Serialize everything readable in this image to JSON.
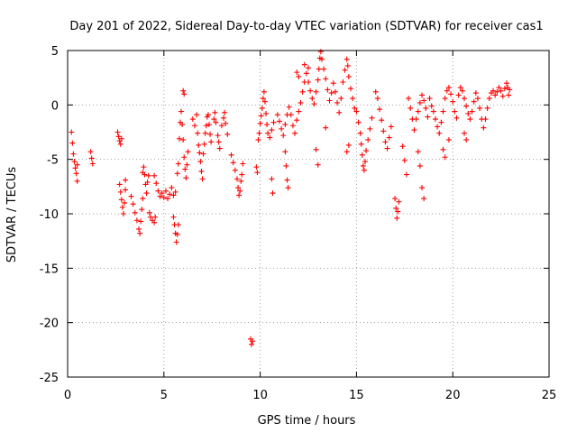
{
  "chart_data": {
    "type": "scatter",
    "title": "Day 201 of 2022, Sidereal Day-to-day VTEC variation (SDTVAR) for receiver cas1",
    "xlabel": "GPS time / hours",
    "ylabel": "SDTVAR / TECUs",
    "xlim": [
      0,
      25
    ],
    "ylim": [
      -25,
      5
    ],
    "xticks": [
      "0",
      "5",
      "10",
      "15",
      "20",
      "25"
    ],
    "yticks": [
      "5",
      "0",
      "-5",
      "-10",
      "-15",
      "-20",
      "-25"
    ],
    "grid": true,
    "marker": "+",
    "color": "#ff0000",
    "series": [
      {
        "name": "SDTVAR",
        "points": [
          [
            0.2,
            -2.5
          ],
          [
            0.25,
            -3.5
          ],
          [
            0.3,
            -4.5
          ],
          [
            0.35,
            -5.2
          ],
          [
            0.4,
            -5.8
          ],
          [
            0.45,
            -6.3
          ],
          [
            0.5,
            -7.0
          ],
          [
            0.5,
            -5.5
          ],
          [
            1.2,
            -4.3
          ],
          [
            1.25,
            -4.9
          ],
          [
            1.3,
            -5.4
          ],
          [
            2.6,
            -2.5
          ],
          [
            2.65,
            -2.9
          ],
          [
            2.7,
            -3.3
          ],
          [
            2.75,
            -3.6
          ],
          [
            2.8,
            -3.1
          ],
          [
            2.7,
            -7.3
          ],
          [
            2.75,
            -8.0
          ],
          [
            2.8,
            -8.7
          ],
          [
            2.85,
            -9.4
          ],
          [
            2.9,
            -10.0
          ],
          [
            2.95,
            -9.0
          ],
          [
            3.0,
            -7.8
          ],
          [
            3.0,
            -6.9
          ],
          [
            3.3,
            -8.4
          ],
          [
            3.4,
            -9.1
          ],
          [
            3.5,
            -9.9
          ],
          [
            3.6,
            -10.6
          ],
          [
            3.7,
            -11.4
          ],
          [
            3.75,
            -11.8
          ],
          [
            3.8,
            -10.7
          ],
          [
            3.85,
            -9.6
          ],
          [
            3.9,
            -8.6
          ],
          [
            3.9,
            -6.2
          ],
          [
            3.95,
            -5.7
          ],
          [
            4.0,
            -6.4
          ],
          [
            4.05,
            -7.3
          ],
          [
            4.1,
            -8.1
          ],
          [
            4.15,
            -7.1
          ],
          [
            4.2,
            -6.5
          ],
          [
            4.25,
            -9.9
          ],
          [
            4.3,
            -10.3
          ],
          [
            4.4,
            -10.6
          ],
          [
            4.5,
            -10.8
          ],
          [
            4.55,
            -10.3
          ],
          [
            4.5,
            -6.5
          ],
          [
            4.6,
            -7.2
          ],
          [
            4.7,
            -7.9
          ],
          [
            4.8,
            -8.4
          ],
          [
            4.9,
            -8.1
          ],
          [
            5.0,
            -8.5
          ],
          [
            5.1,
            -7.9
          ],
          [
            5.2,
            -8.6
          ],
          [
            5.3,
            -8.2
          ],
          [
            5.4,
            -7.6
          ],
          [
            5.5,
            -8.3
          ],
          [
            5.6,
            -8.0
          ],
          [
            5.5,
            -10.3
          ],
          [
            5.55,
            -11.0
          ],
          [
            5.6,
            -11.8
          ],
          [
            5.65,
            -12.6
          ],
          [
            5.7,
            -11.9
          ],
          [
            5.75,
            -11.0
          ],
          [
            5.7,
            -6.3
          ],
          [
            5.75,
            -5.4
          ],
          [
            5.8,
            -3.1
          ],
          [
            5.85,
            -1.6
          ],
          [
            5.9,
            -0.6
          ],
          [
            5.95,
            -1.8
          ],
          [
            6.0,
            -3.2
          ],
          [
            6.05,
            -4.8
          ],
          [
            6.1,
            -5.9
          ],
          [
            6.15,
            -6.7
          ],
          [
            6.2,
            -5.5
          ],
          [
            6.25,
            -4.3
          ],
          [
            6.0,
            1.3
          ],
          [
            6.05,
            1.0
          ],
          [
            6.5,
            -1.3
          ],
          [
            6.6,
            -1.9
          ],
          [
            6.7,
            -0.9
          ],
          [
            6.75,
            -2.6
          ],
          [
            6.8,
            -3.7
          ],
          [
            6.85,
            -4.4
          ],
          [
            6.9,
            -5.2
          ],
          [
            6.95,
            -6.1
          ],
          [
            7.0,
            -6.8
          ],
          [
            7.05,
            -4.5
          ],
          [
            7.1,
            -3.6
          ],
          [
            7.15,
            -2.6
          ],
          [
            7.2,
            -1.9
          ],
          [
            7.25,
            -1.1
          ],
          [
            7.3,
            -0.9
          ],
          [
            7.35,
            -1.8
          ],
          [
            7.4,
            -2.7
          ],
          [
            7.45,
            -3.4
          ],
          [
            7.6,
            -1.3
          ],
          [
            7.65,
            -0.7
          ],
          [
            7.7,
            -1.6
          ],
          [
            7.8,
            -2.8
          ],
          [
            7.85,
            -3.4
          ],
          [
            7.9,
            -4.0
          ],
          [
            8.0,
            -1.9
          ],
          [
            8.1,
            -1.2
          ],
          [
            8.15,
            -0.7
          ],
          [
            8.2,
            -1.7
          ],
          [
            8.3,
            -2.7
          ],
          [
            8.5,
            -4.6
          ],
          [
            8.6,
            -5.3
          ],
          [
            8.7,
            -6.0
          ],
          [
            8.8,
            -6.8
          ],
          [
            8.85,
            -7.6
          ],
          [
            8.9,
            -8.3
          ],
          [
            8.95,
            -7.9
          ],
          [
            9.0,
            -7.0
          ],
          [
            9.05,
            -6.4
          ],
          [
            9.1,
            -5.4
          ],
          [
            9.5,
            -21.5
          ],
          [
            9.55,
            -22.0
          ],
          [
            9.6,
            -21.7
          ],
          [
            9.8,
            -5.7
          ],
          [
            9.85,
            -6.2
          ],
          [
            9.9,
            -3.2
          ],
          [
            9.95,
            -2.6
          ],
          [
            10.0,
            -1.7
          ],
          [
            10.05,
            -1.0
          ],
          [
            10.1,
            -0.3
          ],
          [
            10.15,
            0.6
          ],
          [
            10.2,
            1.2
          ],
          [
            10.25,
            0.3
          ],
          [
            10.3,
            -0.8
          ],
          [
            10.35,
            -1.8
          ],
          [
            10.4,
            -2.6
          ],
          [
            10.5,
            -3.0
          ],
          [
            10.6,
            -2.3
          ],
          [
            10.7,
            -1.6
          ],
          [
            10.6,
            -6.8
          ],
          [
            10.65,
            -8.1
          ],
          [
            10.9,
            -0.9
          ],
          [
            11.0,
            -1.5
          ],
          [
            11.1,
            -2.2
          ],
          [
            11.2,
            -2.8
          ],
          [
            11.3,
            -1.8
          ],
          [
            11.4,
            -0.9
          ],
          [
            11.5,
            -0.2
          ],
          [
            11.6,
            -0.9
          ],
          [
            11.7,
            -1.9
          ],
          [
            11.8,
            -2.6
          ],
          [
            11.3,
            -4.3
          ],
          [
            11.35,
            -5.6
          ],
          [
            11.4,
            -6.9
          ],
          [
            11.45,
            -7.6
          ],
          [
            11.9,
            -1.4
          ],
          [
            12.0,
            -0.6
          ],
          [
            12.1,
            0.2
          ],
          [
            12.2,
            1.2
          ],
          [
            12.3,
            2.1
          ],
          [
            12.4,
            2.9
          ],
          [
            12.5,
            2.1
          ],
          [
            12.6,
            1.3
          ],
          [
            12.7,
            0.6
          ],
          [
            12.8,
            0.1
          ],
          [
            11.9,
            3.0
          ],
          [
            12.0,
            2.6
          ],
          [
            12.3,
            3.7
          ],
          [
            12.5,
            3.4
          ],
          [
            12.9,
            1.2
          ],
          [
            13.0,
            2.3
          ],
          [
            13.05,
            3.3
          ],
          [
            13.1,
            4.3
          ],
          [
            13.15,
            4.9
          ],
          [
            13.2,
            4.2
          ],
          [
            13.3,
            3.3
          ],
          [
            13.4,
            2.4
          ],
          [
            13.5,
            1.4
          ],
          [
            13.6,
            0.4
          ],
          [
            12.9,
            -4.1
          ],
          [
            13.0,
            -5.5
          ],
          [
            13.4,
            -2.1
          ],
          [
            13.7,
            1.1
          ],
          [
            13.8,
            2.0
          ],
          [
            13.9,
            1.2
          ],
          [
            14.0,
            0.2
          ],
          [
            14.1,
            -0.7
          ],
          [
            14.2,
            0.6
          ],
          [
            14.3,
            2.1
          ],
          [
            14.4,
            3.2
          ],
          [
            14.5,
            4.2
          ],
          [
            14.55,
            3.6
          ],
          [
            14.6,
            2.6
          ],
          [
            14.7,
            1.5
          ],
          [
            14.8,
            0.6
          ],
          [
            14.9,
            -0.3
          ],
          [
            14.5,
            -4.3
          ],
          [
            14.6,
            -3.7
          ],
          [
            15.0,
            -0.6
          ],
          [
            15.1,
            -1.6
          ],
          [
            15.2,
            -2.6
          ],
          [
            15.25,
            -3.6
          ],
          [
            15.3,
            -4.6
          ],
          [
            15.35,
            -5.6
          ],
          [
            15.4,
            -6.0
          ],
          [
            15.45,
            -5.2
          ],
          [
            15.5,
            -4.2
          ],
          [
            15.6,
            -3.2
          ],
          [
            15.7,
            -2.2
          ],
          [
            15.8,
            -1.2
          ],
          [
            16.0,
            1.2
          ],
          [
            16.1,
            0.6
          ],
          [
            16.2,
            -0.4
          ],
          [
            16.3,
            -1.4
          ],
          [
            16.4,
            -2.4
          ],
          [
            16.5,
            -3.4
          ],
          [
            16.6,
            -4.0
          ],
          [
            16.7,
            -3.0
          ],
          [
            16.8,
            -2.0
          ],
          [
            17.0,
            -8.6
          ],
          [
            17.05,
            -9.5
          ],
          [
            17.1,
            -10.4
          ],
          [
            17.15,
            -9.8
          ],
          [
            17.2,
            -8.9
          ],
          [
            17.4,
            -3.8
          ],
          [
            17.5,
            -5.1
          ],
          [
            17.6,
            -6.4
          ],
          [
            17.7,
            0.6
          ],
          [
            17.8,
            -0.3
          ],
          [
            17.9,
            -1.3
          ],
          [
            18.0,
            -2.3
          ],
          [
            18.1,
            -1.3
          ],
          [
            18.2,
            -0.6
          ],
          [
            18.3,
            0.2
          ],
          [
            18.4,
            0.9
          ],
          [
            18.5,
            0.4
          ],
          [
            18.6,
            -0.3
          ],
          [
            18.7,
            -1.1
          ],
          [
            18.2,
            -4.3
          ],
          [
            18.3,
            -5.6
          ],
          [
            18.4,
            -7.6
          ],
          [
            18.5,
            -8.6
          ],
          [
            18.8,
            0.6
          ],
          [
            18.9,
            -0.1
          ],
          [
            19.0,
            -0.6
          ],
          [
            19.1,
            -1.3
          ],
          [
            19.2,
            -2.0
          ],
          [
            19.3,
            -2.6
          ],
          [
            19.4,
            -1.6
          ],
          [
            19.5,
            -0.6
          ],
          [
            19.6,
            0.6
          ],
          [
            19.7,
            1.3
          ],
          [
            19.8,
            1.6
          ],
          [
            19.9,
            1.0
          ],
          [
            20.0,
            0.3
          ],
          [
            20.1,
            -0.6
          ],
          [
            20.2,
            -1.2
          ],
          [
            19.5,
            -4.1
          ],
          [
            19.6,
            -4.8
          ],
          [
            19.8,
            -3.2
          ],
          [
            20.3,
            0.9
          ],
          [
            20.4,
            1.6
          ],
          [
            20.5,
            1.3
          ],
          [
            20.6,
            0.6
          ],
          [
            20.7,
            -0.1
          ],
          [
            20.8,
            -0.8
          ],
          [
            20.9,
            -1.3
          ],
          [
            21.0,
            -0.6
          ],
          [
            21.1,
            0.3
          ],
          [
            20.6,
            -2.6
          ],
          [
            20.7,
            -3.2
          ],
          [
            21.2,
            1.1
          ],
          [
            21.3,
            0.6
          ],
          [
            21.4,
            -0.3
          ],
          [
            21.5,
            -1.3
          ],
          [
            21.6,
            -2.1
          ],
          [
            21.7,
            -1.3
          ],
          [
            21.8,
            -0.3
          ],
          [
            21.9,
            0.6
          ],
          [
            22.0,
            1.1
          ],
          [
            22.1,
            1.3
          ],
          [
            22.2,
            0.9
          ],
          [
            22.3,
            1.2
          ],
          [
            22.4,
            1.6
          ],
          [
            22.5,
            1.3
          ],
          [
            22.6,
            0.8
          ],
          [
            22.7,
            1.5
          ],
          [
            22.8,
            2.0
          ],
          [
            22.85,
            1.6
          ],
          [
            22.9,
            0.9
          ],
          [
            22.95,
            1.4
          ]
        ]
      }
    ]
  }
}
